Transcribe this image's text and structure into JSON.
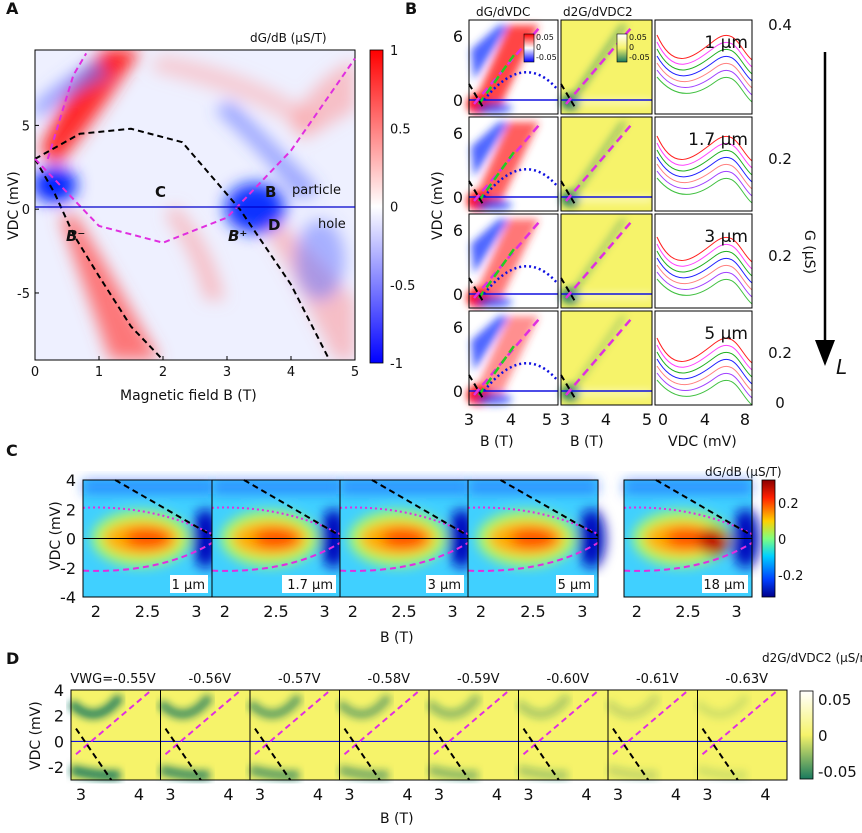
{
  "panels": {
    "a": "A",
    "b": "B",
    "c": "C",
    "d": "D"
  },
  "colors": {
    "red": "#ff1a1a",
    "blue": "#1a1aff",
    "magenta": "#e02ee0",
    "green": "#22cc22",
    "dotblue": "#1010e0",
    "cmap_yellow": "#f6f36a",
    "cmap_green": "#197a5e"
  },
  "chart_data": [
    {
      "id": "A",
      "type": "heatmap",
      "title": "dG/dB (μS/T)",
      "xlabel": "Magnetic field B (T)",
      "ylabel": "VDC (mV)",
      "xlim": [
        0,
        5
      ],
      "ylim": [
        -9,
        9.5
      ],
      "x_ticks": [
        "0",
        "1",
        "2",
        "3",
        "4",
        "5"
      ],
      "y_ticks": [
        "5",
        "0",
        "-5"
      ],
      "colorbar_ticks": [
        "1",
        "0.5",
        "0",
        "-0.5",
        "-1"
      ],
      "colorbar_range": [
        -1,
        1
      ],
      "annotations": [
        "C",
        "B",
        "D",
        "B⁻",
        "B⁺",
        "particle",
        "hole"
      ],
      "curves": {
        "black_dashed_left": [
          [
            0,
            3
          ],
          [
            0.3,
            1
          ],
          [
            0.6,
            -1.5
          ],
          [
            1,
            -4
          ],
          [
            1.5,
            -7
          ],
          [
            2,
            -9
          ]
        ],
        "black_dashed_parabola": [
          [
            0,
            3
          ],
          [
            0.7,
            4.5
          ],
          [
            1.5,
            4.8
          ],
          [
            2.3,
            4
          ],
          [
            3.2,
            0
          ],
          [
            4,
            -4.5
          ],
          [
            4.6,
            -9
          ]
        ],
        "magenta_dashed": [
          [
            0.2,
            3
          ],
          [
            0.6,
            8
          ],
          [
            0.8,
            9.3
          ]
        ],
        "magenta_parabola": [
          [
            0,
            3
          ],
          [
            1,
            -1
          ],
          [
            2,
            -2
          ],
          [
            3,
            -0.5
          ],
          [
            4,
            3.5
          ],
          [
            5,
            9
          ]
        ]
      }
    },
    {
      "id": "B",
      "type": "heatmap",
      "columns": [
        {
          "title": "dG/dVDC",
          "xlabel": "B (T)",
          "x_ticks": [
            "3",
            "4",
            "5"
          ],
          "colorbar_ticks": [
            "0.05",
            "0",
            "-0.05"
          ]
        },
        {
          "title": "d2G/dVDC2",
          "xlabel": "B (T)",
          "x_ticks": [
            "3",
            "4",
            "5"
          ],
          "colorbar_ticks": [
            "0.05",
            "0",
            "-0.05"
          ]
        },
        {
          "title": "",
          "xlabel": "VDC (mV)",
          "x_ticks": [
            "0",
            "4",
            "8"
          ]
        }
      ],
      "ylabel": "VDC (mV)",
      "y_ticks": [
        "6",
        "0"
      ],
      "right_ylabel": "G (μS)",
      "right_y_ticks": [
        "0.4",
        "0.2",
        "0.2",
        "0.2",
        "0.2",
        "0"
      ],
      "rows": [
        "1 μm",
        "1.7 μm",
        "3 μm",
        "5 μm"
      ],
      "arrow_label": "L"
    },
    {
      "id": "C",
      "type": "heatmap",
      "title": "dG/dB (μS/T)",
      "xlabel": "B (T)",
      "ylabel": "VDC (mV)",
      "ylim": [
        -4,
        4
      ],
      "y_ticks": [
        "4",
        "2",
        "0",
        "-2",
        "-4"
      ],
      "x_ticks": [
        "2",
        "2.5",
        "3"
      ],
      "subpanels": [
        "1 μm",
        "1.7 μm",
        "3 μm",
        "5 μm",
        "18 μm"
      ],
      "colorbar_ticks": [
        "0.2",
        "0",
        "-0.2"
      ]
    },
    {
      "id": "D",
      "type": "heatmap",
      "xlabel": "B (T)",
      "ylabel": "VDC (mV)",
      "ylim": [
        -3,
        4
      ],
      "y_ticks": [
        "4",
        "2",
        "0",
        "-2"
      ],
      "x_ticks": [
        "3",
        "4"
      ],
      "series": [
        {
          "name": "VWG=-0.55V"
        },
        {
          "name": "-0.56V"
        },
        {
          "name": "-0.57V"
        },
        {
          "name": "-0.58V"
        },
        {
          "name": "-0.59V"
        },
        {
          "name": "-0.60V"
        },
        {
          "name": "-0.61V"
        },
        {
          "name": "-0.63V"
        }
      ],
      "colorbar_title": "d2G/dVDC2 (μS/mV2)",
      "colorbar_ticks": [
        "0.05",
        "0",
        "-0.05"
      ]
    }
  ]
}
